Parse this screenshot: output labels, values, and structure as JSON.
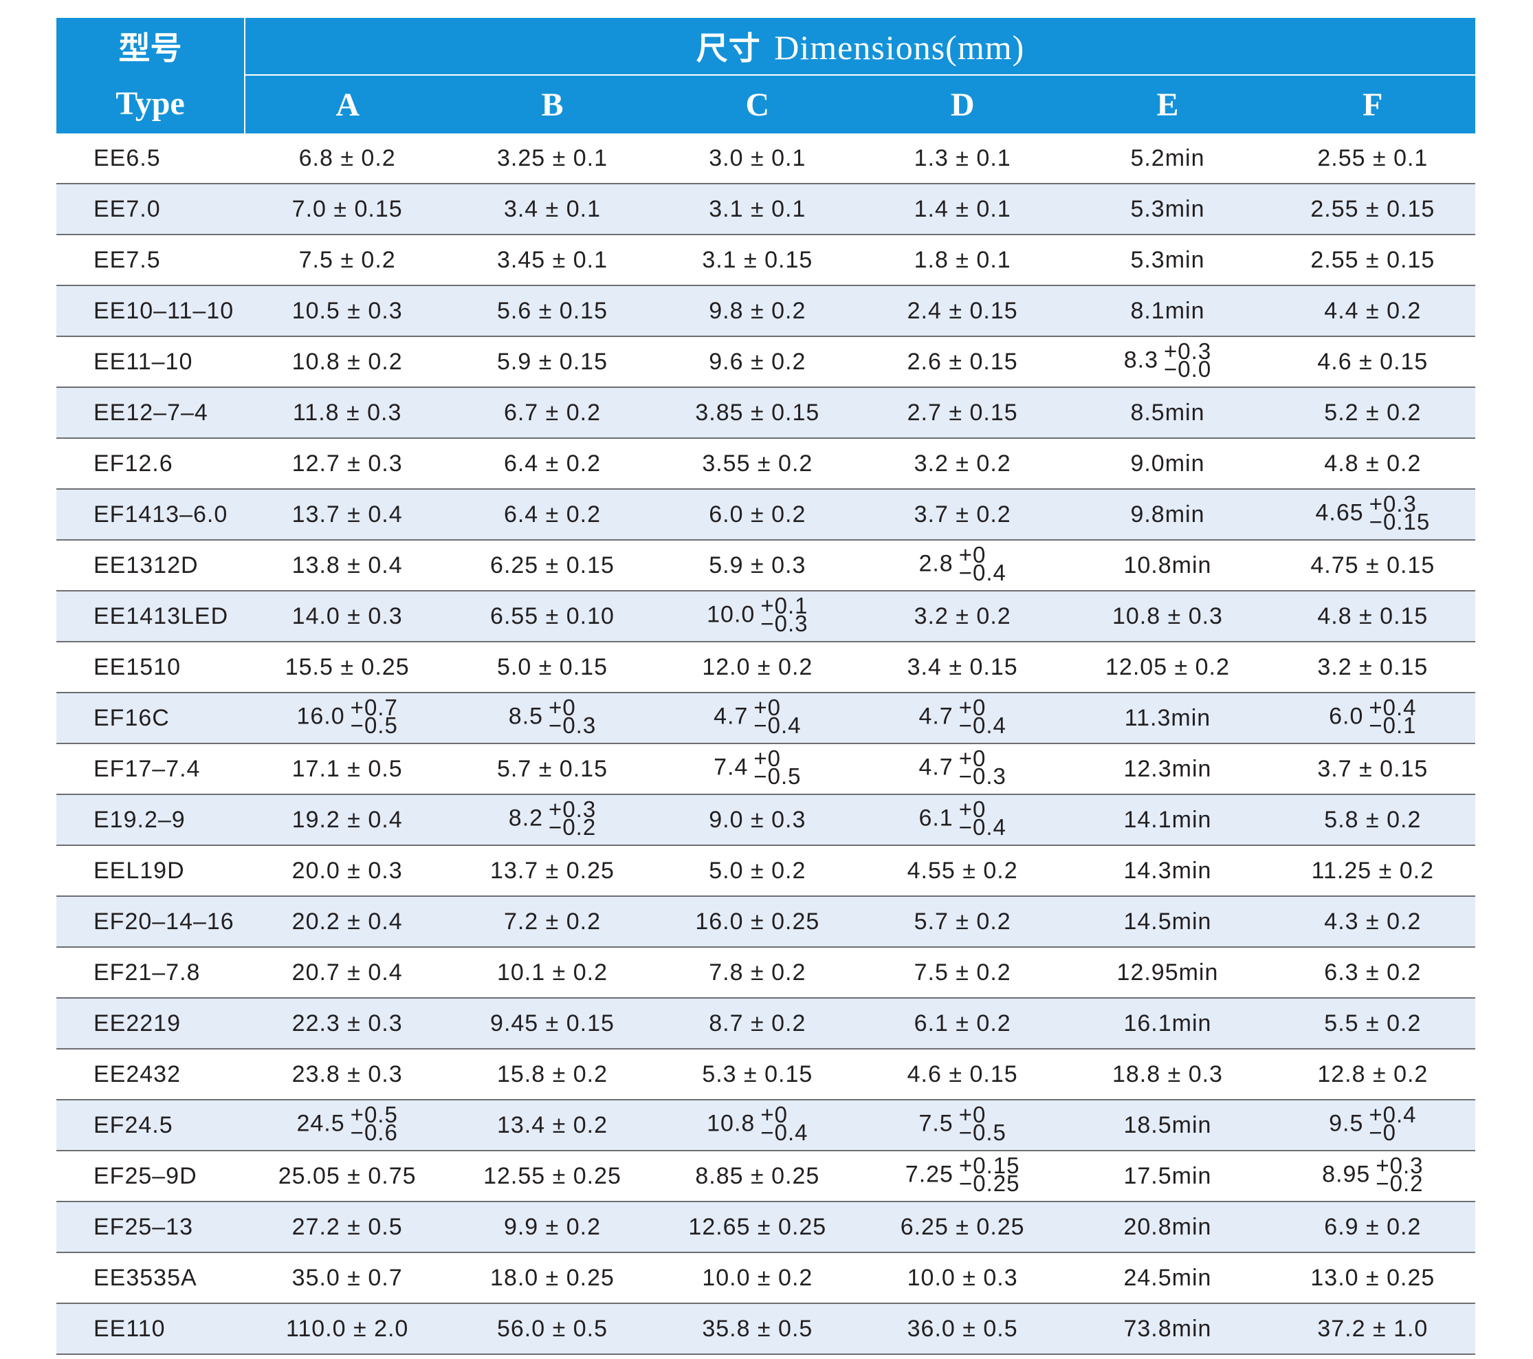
{
  "header": {
    "type_cn": "型号",
    "type_en": "Type",
    "dims_cn": "尺寸",
    "dims_en": "Dimensions(mm)",
    "columns": [
      "A",
      "B",
      "C",
      "D",
      "E",
      "F"
    ]
  },
  "rows": [
    {
      "type": "EE6.5",
      "cells": [
        {
          "text": "6.8 ± 0.2"
        },
        {
          "text": "3.25 ± 0.1"
        },
        {
          "text": "3.0 ± 0.1"
        },
        {
          "text": "1.3 ± 0.1"
        },
        {
          "text": "5.2min"
        },
        {
          "text": "2.55 ± 0.1"
        }
      ]
    },
    {
      "type": "EE7.0",
      "cells": [
        {
          "text": "7.0 ± 0.15"
        },
        {
          "text": "3.4 ± 0.1"
        },
        {
          "text": "3.1 ± 0.1"
        },
        {
          "text": "1.4 ± 0.1"
        },
        {
          "text": "5.3min"
        },
        {
          "text": "2.55 ± 0.15"
        }
      ]
    },
    {
      "type": "EE7.5",
      "cells": [
        {
          "text": "7.5 ± 0.2"
        },
        {
          "text": "3.45 ± 0.1"
        },
        {
          "text": "3.1 ± 0.15"
        },
        {
          "text": "1.8 ± 0.1"
        },
        {
          "text": "5.3min"
        },
        {
          "text": "2.55 ± 0.15"
        }
      ]
    },
    {
      "type": "EE10–11–10",
      "cells": [
        {
          "text": "10.5 ± 0.3"
        },
        {
          "text": "5.6 ± 0.15"
        },
        {
          "text": "9.8 ± 0.2"
        },
        {
          "text": "2.4 ± 0.15"
        },
        {
          "text": "8.1min"
        },
        {
          "text": "4.4 ± 0.2"
        }
      ]
    },
    {
      "type": "EE11–10",
      "cells": [
        {
          "text": "10.8 ± 0.2"
        },
        {
          "text": "5.9 ± 0.15"
        },
        {
          "text": "9.6 ± 0.2"
        },
        {
          "text": "2.6 ± 0.15"
        },
        {
          "base": "8.3",
          "up": "+0.3",
          "down": "−0.0"
        },
        {
          "text": "4.6 ± 0.15"
        }
      ]
    },
    {
      "type": "EE12–7–4",
      "cells": [
        {
          "text": "11.8 ± 0.3"
        },
        {
          "text": "6.7 ± 0.2"
        },
        {
          "text": "3.85 ± 0.15"
        },
        {
          "text": "2.7 ± 0.15"
        },
        {
          "text": "8.5min"
        },
        {
          "text": "5.2 ± 0.2"
        }
      ]
    },
    {
      "type": "EF12.6",
      "cells": [
        {
          "text": "12.7 ± 0.3"
        },
        {
          "text": "6.4 ± 0.2"
        },
        {
          "text": "3.55 ± 0.2"
        },
        {
          "text": "3.2 ± 0.2"
        },
        {
          "text": "9.0min"
        },
        {
          "text": "4.8 ± 0.2"
        }
      ]
    },
    {
      "type": "EF1413–6.0",
      "cells": [
        {
          "text": "13.7 ± 0.4"
        },
        {
          "text": "6.4 ± 0.2"
        },
        {
          "text": "6.0 ± 0.2"
        },
        {
          "text": "3.7 ± 0.2"
        },
        {
          "text": "9.8min"
        },
        {
          "base": "4.65",
          "up": "+0.3",
          "down": "−0.15"
        }
      ]
    },
    {
      "type": "EE1312D",
      "cells": [
        {
          "text": "13.8 ± 0.4"
        },
        {
          "text": "6.25 ± 0.15"
        },
        {
          "text": "5.9 ± 0.3"
        },
        {
          "base": "2.8",
          "up": "+0",
          "down": "−0.4"
        },
        {
          "text": "10.8min"
        },
        {
          "text": "4.75 ± 0.15"
        }
      ]
    },
    {
      "type": "EE1413LED",
      "cells": [
        {
          "text": "14.0 ± 0.3"
        },
        {
          "text": "6.55 ± 0.10"
        },
        {
          "base": "10.0",
          "up": "+0.1",
          "down": "−0.3"
        },
        {
          "text": "3.2 ± 0.2"
        },
        {
          "text": "10.8 ± 0.3"
        },
        {
          "text": "4.8 ± 0.15"
        }
      ]
    },
    {
      "type": "EE1510",
      "cells": [
        {
          "text": "15.5 ± 0.25"
        },
        {
          "text": "5.0 ± 0.15"
        },
        {
          "text": "12.0 ± 0.2"
        },
        {
          "text": "3.4 ± 0.15"
        },
        {
          "text": "12.05 ± 0.2"
        },
        {
          "text": "3.2 ± 0.15"
        }
      ]
    },
    {
      "type": "EF16C",
      "cells": [
        {
          "base": "16.0",
          "up": "+0.7",
          "down": "−0.5"
        },
        {
          "base": "8.5",
          "up": "+0",
          "down": "−0.3"
        },
        {
          "base": "4.7",
          "up": "+0",
          "down": "−0.4"
        },
        {
          "base": "4.7",
          "up": "+0",
          "down": "−0.4"
        },
        {
          "text": "11.3min"
        },
        {
          "base": "6.0",
          "up": "+0.4",
          "down": "−0.1"
        }
      ]
    },
    {
      "type": "EF17–7.4",
      "cells": [
        {
          "text": "17.1 ± 0.5"
        },
        {
          "text": "5.7 ± 0.15"
        },
        {
          "base": "7.4",
          "up": "+0",
          "down": "−0.5"
        },
        {
          "base": "4.7",
          "up": "+0",
          "down": "−0.3"
        },
        {
          "text": "12.3min"
        },
        {
          "text": "3.7 ± 0.15"
        }
      ]
    },
    {
      "type": "E19.2–9",
      "cells": [
        {
          "text": "19.2 ± 0.4"
        },
        {
          "base": "8.2",
          "up": "+0.3",
          "down": "−0.2"
        },
        {
          "text": "9.0 ± 0.3"
        },
        {
          "base": "6.1",
          "up": "+0",
          "down": "−0.4"
        },
        {
          "text": "14.1min"
        },
        {
          "text": "5.8 ± 0.2"
        }
      ]
    },
    {
      "type": "EEL19D",
      "cells": [
        {
          "text": "20.0 ± 0.3"
        },
        {
          "text": "13.7 ± 0.25"
        },
        {
          "text": "5.0 ± 0.2"
        },
        {
          "text": "4.55 ± 0.2"
        },
        {
          "text": "14.3min"
        },
        {
          "text": "11.25 ± 0.2"
        }
      ]
    },
    {
      "type": "EF20–14–16",
      "cells": [
        {
          "text": "20.2 ± 0.4"
        },
        {
          "text": "7.2 ± 0.2"
        },
        {
          "text": "16.0 ± 0.25"
        },
        {
          "text": "5.7 ± 0.2"
        },
        {
          "text": "14.5min"
        },
        {
          "text": "4.3 ± 0.2"
        }
      ]
    },
    {
      "type": "EF21–7.8",
      "cells": [
        {
          "text": "20.7 ± 0.4"
        },
        {
          "text": "10.1 ± 0.2"
        },
        {
          "text": "7.8 ± 0.2"
        },
        {
          "text": "7.5 ± 0.2"
        },
        {
          "text": "12.95min"
        },
        {
          "text": "6.3 ± 0.2"
        }
      ]
    },
    {
      "type": "EE2219",
      "cells": [
        {
          "text": "22.3 ± 0.3"
        },
        {
          "text": "9.45 ± 0.15"
        },
        {
          "text": "8.7 ± 0.2"
        },
        {
          "text": "6.1 ± 0.2"
        },
        {
          "text": "16.1min"
        },
        {
          "text": "5.5 ± 0.2"
        }
      ]
    },
    {
      "type": "EE2432",
      "cells": [
        {
          "text": "23.8 ± 0.3"
        },
        {
          "text": "15.8 ± 0.2"
        },
        {
          "text": "5.3 ± 0.15"
        },
        {
          "text": "4.6 ± 0.15"
        },
        {
          "text": "18.8 ± 0.3"
        },
        {
          "text": "12.8 ± 0.2"
        }
      ]
    },
    {
      "type": "EF24.5",
      "cells": [
        {
          "base": "24.5",
          "up": "+0.5",
          "down": "−0.6"
        },
        {
          "text": "13.4 ± 0.2"
        },
        {
          "base": "10.8",
          "up": "+0",
          "down": "−0.4"
        },
        {
          "base": "7.5",
          "up": "+0",
          "down": "−0.5"
        },
        {
          "text": "18.5min"
        },
        {
          "base": "9.5",
          "up": "+0.4",
          "down": "−0"
        }
      ]
    },
    {
      "type": "EF25–9D",
      "cells": [
        {
          "text": "25.05 ± 0.75"
        },
        {
          "text": "12.55 ± 0.25"
        },
        {
          "text": "8.85 ± 0.25"
        },
        {
          "base": "7.25",
          "up": "+0.15",
          "down": "−0.25"
        },
        {
          "text": "17.5min"
        },
        {
          "base": "8.95",
          "up": "+0.3",
          "down": "−0.2"
        }
      ]
    },
    {
      "type": "EF25–13",
      "cells": [
        {
          "text": "27.2 ± 0.5"
        },
        {
          "text": "9.9 ± 0.2"
        },
        {
          "text": "12.65 ± 0.25"
        },
        {
          "text": "6.25 ± 0.25"
        },
        {
          "text": "20.8min"
        },
        {
          "text": "6.9 ± 0.2"
        }
      ]
    },
    {
      "type": "EE3535A",
      "cells": [
        {
          "text": "35.0 ± 0.7"
        },
        {
          "text": "18.0 ± 0.25"
        },
        {
          "text": "10.0 ± 0.2"
        },
        {
          "text": "10.0 ± 0.3"
        },
        {
          "text": "24.5min"
        },
        {
          "text": "13.0 ± 0.25"
        }
      ]
    },
    {
      "type": "EE110",
      "cells": [
        {
          "text": "110.0 ± 2.0"
        },
        {
          "text": "56.0 ± 0.5"
        },
        {
          "text": "35.8 ± 0.5"
        },
        {
          "text": "36.0 ± 0.5"
        },
        {
          "text": "73.8min"
        },
        {
          "text": "37.2 ± 1.0"
        }
      ]
    }
  ]
}
